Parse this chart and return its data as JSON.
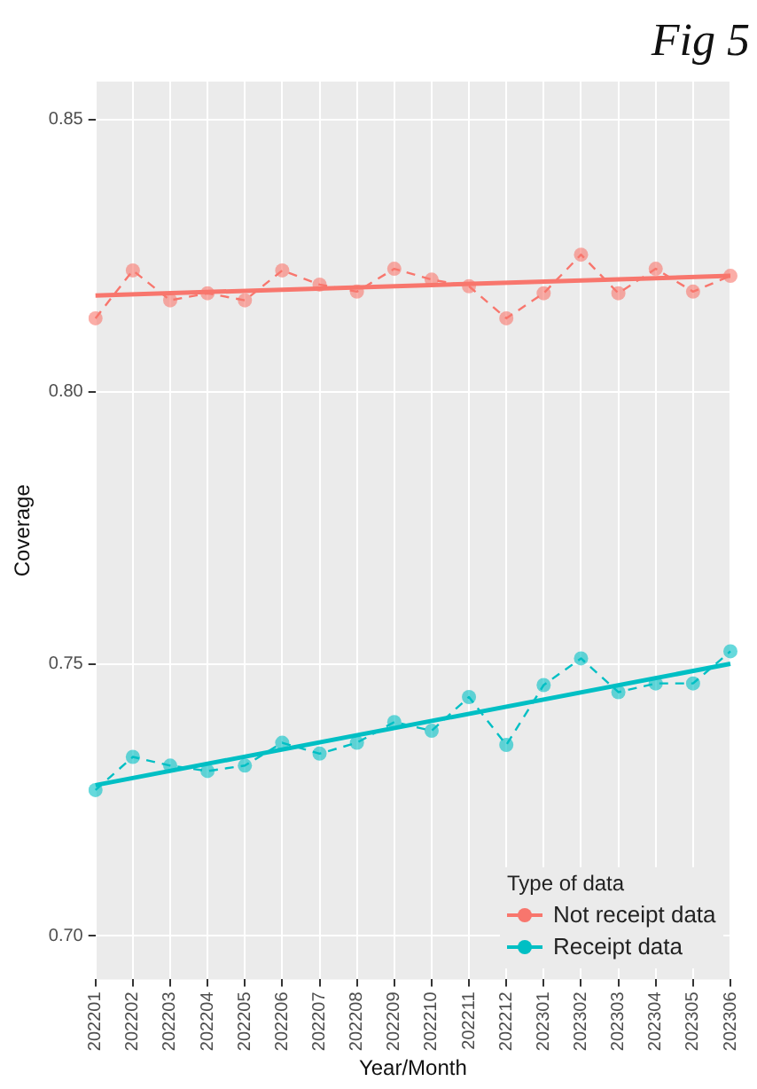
{
  "chart_data": {
    "type": "line",
    "xlabel": "Year/Month",
    "ylabel": "Coverage",
    "legend_title": "Type of data",
    "legend": "bottom right",
    "grid": true,
    "annotations": [
      "Fig 5"
    ],
    "categories": [
      "202201",
      "202202",
      "202203",
      "202204",
      "202205",
      "202206",
      "202207",
      "202208",
      "202209",
      "202210",
      "202211",
      "202212",
      "202301",
      "202302",
      "202303",
      "202304",
      "202305",
      "202306"
    ],
    "ylim": [
      0.692,
      0.857
    ],
    "yticks": [
      {
        "value": 0.7,
        "label": "0.70"
      },
      {
        "value": 0.75,
        "label": "0.75"
      },
      {
        "value": 0.8,
        "label": "0.80"
      },
      {
        "value": 0.85,
        "label": "0.85"
      }
    ],
    "series": [
      {
        "name": "Not receipt data",
        "color": "#f8766d",
        "line_style": "dashed",
        "marker": "circle",
        "values": [
          0.8135,
          0.8223,
          0.8168,
          0.8181,
          0.8168,
          0.8223,
          0.8197,
          0.8184,
          0.8226,
          0.8206,
          0.8194,
          0.8135,
          0.8181,
          0.8252,
          0.8181,
          0.8226,
          0.8184,
          0.8213
        ]
      },
      {
        "name": "Receipt data",
        "color": "#00bfc4",
        "line_style": "dashed",
        "marker": "circle",
        "values": [
          0.7268,
          0.7329,
          0.7313,
          0.7303,
          0.7313,
          0.7355,
          0.7335,
          0.7355,
          0.7393,
          0.7377,
          0.7439,
          0.7351,
          0.7461,
          0.751,
          0.7448,
          0.7464,
          0.7464,
          0.7523
        ]
      },
      {
        "type": "line",
        "color": "#f8766d",
        "line_style": "solid",
        "x": [
          "202201",
          "202306"
        ],
        "values": [
          0.8177,
          0.8213
        ]
      },
      {
        "type": "line",
        "color": "#00bfc4",
        "line_style": "solid",
        "x": [
          "202201",
          "202306"
        ],
        "values": [
          0.7277,
          0.75
        ]
      }
    ]
  }
}
